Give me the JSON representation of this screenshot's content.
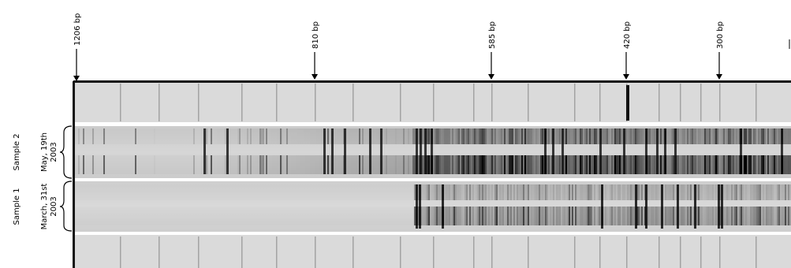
{
  "markers": [
    {
      "label": "1206 bp"
    },
    {
      "label": "810 bp"
    },
    {
      "label": "585 bp"
    },
    {
      "label": "420 bp"
    },
    {
      "label": "300 bp"
    }
  ],
  "samples": [
    {
      "name": "Sample 2",
      "date_line1": "May, 19th",
      "date_line2": "2003"
    },
    {
      "name": "Sample 1",
      "date_line1": "March, 31st",
      "date_line2": "2003"
    }
  ],
  "colors": {
    "frame": "#111111",
    "background": "#ffffff",
    "gel": "#d9d9d9",
    "band": "#000000"
  }
}
